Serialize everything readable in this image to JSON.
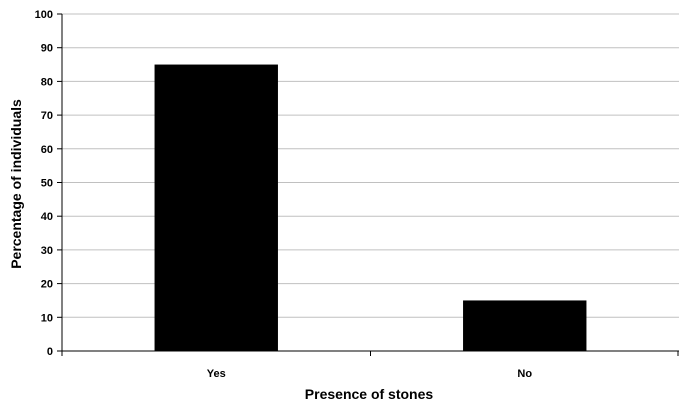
{
  "chart_data": {
    "type": "bar",
    "title": "",
    "xlabel": "Presence of stones",
    "ylabel": "Percentage of individuals",
    "categories": [
      "Yes",
      "No"
    ],
    "values": [
      85,
      15
    ],
    "ylim": [
      0,
      100
    ],
    "yticks": [
      "0",
      "10",
      "20",
      "30",
      "40",
      "50",
      "60",
      "70",
      "80",
      "90",
      "100"
    ],
    "grid": true,
    "bar_color": "#000000",
    "gridline_color": "#c0c0c0"
  }
}
